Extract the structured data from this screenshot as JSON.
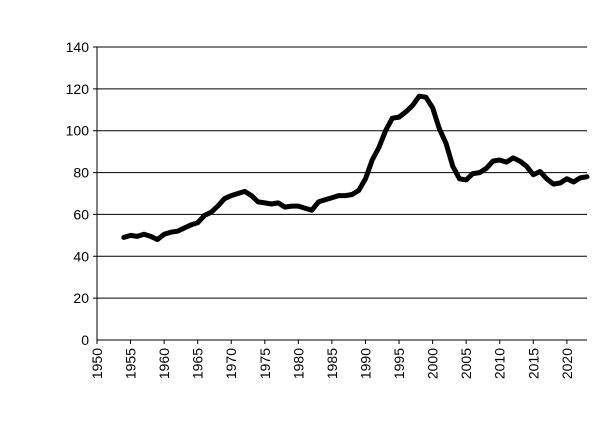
{
  "chart_data": {
    "type": "line",
    "title": "",
    "xlabel": "",
    "ylabel": "",
    "xlim": [
      1950,
      2023
    ],
    "ylim": [
      0,
      140
    ],
    "grid": "horizontal",
    "legend": "none",
    "line_color": "#000000",
    "x_ticks": [
      "1950",
      "1955",
      "1960",
      "1965",
      "1970",
      "1975",
      "1980",
      "1985",
      "1990",
      "1995",
      "2000",
      "2005",
      "2010",
      "2015",
      "2020"
    ],
    "y_ticks": [
      "0",
      "20",
      "40",
      "60",
      "80",
      "100",
      "120",
      "140"
    ],
    "series": [
      {
        "x": [
          1954,
          1955,
          1956,
          1957,
          1958,
          1959,
          1960,
          1961,
          1962,
          1963,
          1964,
          1965,
          1966,
          1967,
          1968,
          1969,
          1970,
          1971,
          1972,
          1973,
          1974,
          1975,
          1976,
          1977,
          1978,
          1979,
          1980,
          1981,
          1982,
          1983,
          1984,
          1985,
          1986,
          1987,
          1988,
          1989,
          1990,
          1991,
          1992,
          1993,
          1994,
          1995,
          1996,
          1997,
          1998,
          1999,
          2000,
          2001,
          2002,
          2003,
          2004,
          2005,
          2006,
          2007,
          2008,
          2009,
          2010,
          2011,
          2012,
          2013,
          2014,
          2015,
          2016,
          2017,
          2018,
          2019,
          2020,
          2021,
          2022,
          2023
        ],
        "values": [
          49,
          50,
          49.5,
          50.5,
          49.5,
          48,
          50.5,
          51.5,
          52,
          53.5,
          55,
          56,
          59.5,
          61,
          64,
          67.5,
          69,
          70,
          71,
          69,
          66,
          65.5,
          65,
          65.5,
          63.5,
          64,
          64,
          63,
          62,
          66,
          67,
          68,
          69,
          69,
          69.5,
          71.5,
          77,
          86,
          92,
          100,
          106,
          106.5,
          109,
          112,
          116.5,
          116,
          111,
          101,
          94,
          83,
          77,
          76.5,
          79.5,
          80,
          82,
          85.5,
          86,
          85,
          87,
          85.5,
          83,
          79,
          80.5,
          77,
          74.5,
          75,
          77,
          75.5,
          77.5,
          78
        ]
      }
    ]
  }
}
